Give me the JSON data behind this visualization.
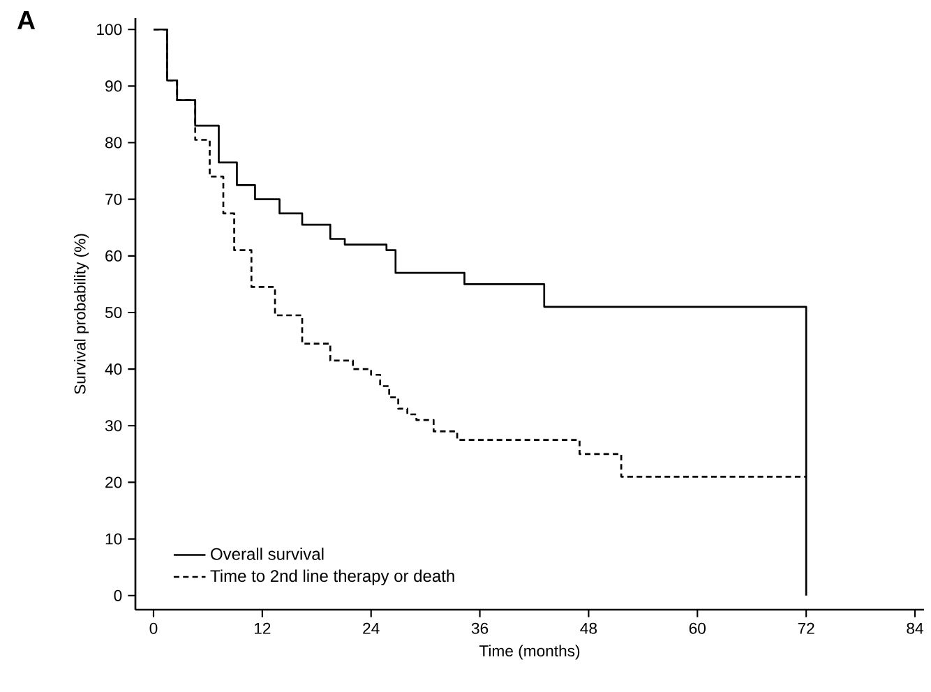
{
  "chart_data": {
    "type": "step",
    "xlabel": "Time (months)",
    "ylabel": "Survival probability (%)",
    "annotations": [
      "A"
    ],
    "xlim": [
      -2,
      85
    ],
    "ylim": [
      -2.5,
      102
    ],
    "xticks": [
      0,
      12,
      24,
      36,
      48,
      60,
      72,
      84
    ],
    "yticks": [
      0,
      10,
      20,
      30,
      40,
      50,
      60,
      70,
      80,
      90,
      100
    ],
    "legend": "bottom left",
    "series": [
      {
        "name": "Overall survival",
        "color": "#000000",
        "line_style": "solid",
        "x": [
          0,
          0.3,
          1.5,
          2.6,
          4.6,
          7.2,
          9.2,
          11.2,
          13.9,
          16.4,
          19.5,
          21.1,
          25.7,
          26.7,
          34.3,
          43.1,
          72,
          72
        ],
        "values": [
          100,
          100,
          91,
          87.5,
          83,
          76.5,
          72.5,
          70,
          67.5,
          65.5,
          63,
          62,
          61,
          57,
          55,
          51,
          51,
          0
        ]
      },
      {
        "name": "Time to 2nd line therapy or death",
        "color": "#000000",
        "line_style": "dashed",
        "x": [
          0,
          0.3,
          1.5,
          2.6,
          4.6,
          6.2,
          7.7,
          8.9,
          10.8,
          13.4,
          16.4,
          19.5,
          22,
          24,
          25,
          26,
          27,
          28,
          29,
          30.9,
          33.5,
          47,
          51.6,
          72
        ],
        "values": [
          100,
          100,
          91,
          87.5,
          80.5,
          74,
          67.5,
          61,
          54.5,
          49.5,
          44.5,
          41.5,
          40,
          39,
          37,
          35,
          33,
          32,
          31,
          29,
          27.5,
          25,
          21,
          21
        ]
      }
    ]
  }
}
